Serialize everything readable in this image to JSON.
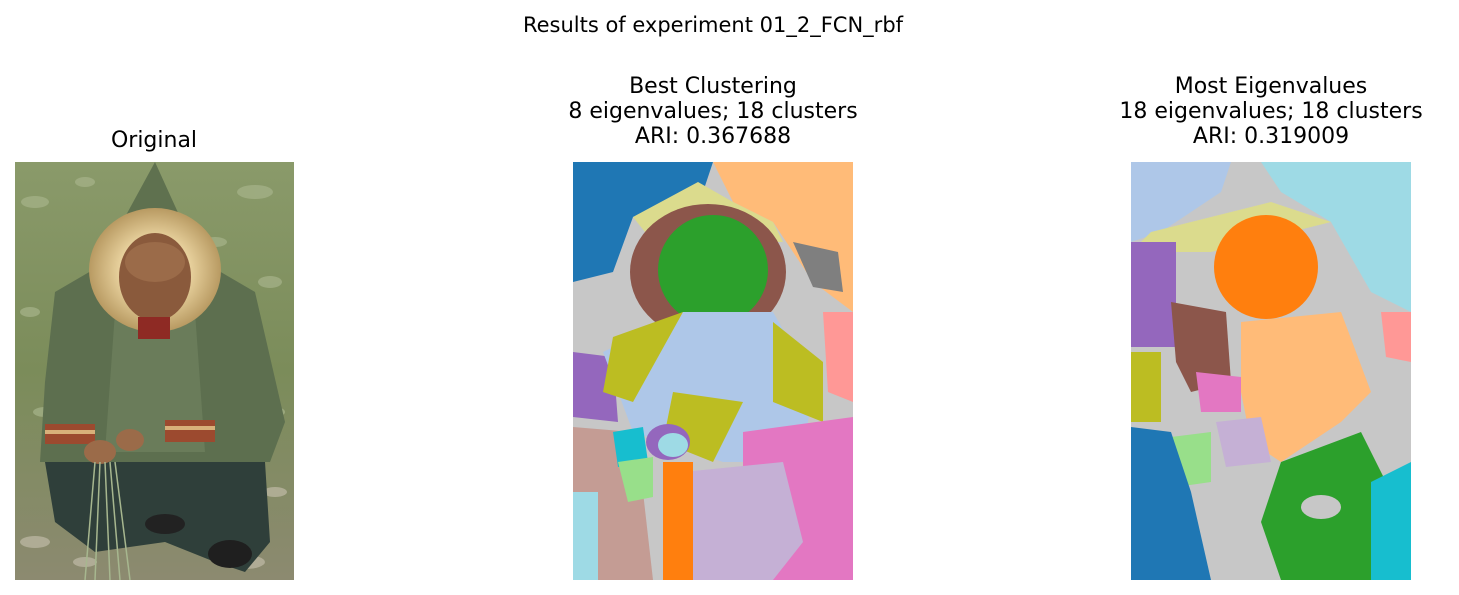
{
  "figure": {
    "suptitle": "Results of experiment 01_2_FCN_rbf"
  },
  "panels": [
    {
      "id": "original",
      "title_lines": [
        "Original"
      ],
      "image": "photo of a man in a green hooded parka with fur trim crouching on grass"
    },
    {
      "id": "best-clustering",
      "title_lines": [
        "Best Clustering",
        "8 eigenvalues; 18 clusters",
        "ARI: 0.367688"
      ]
    },
    {
      "id": "most-eigenvalues",
      "title_lines": [
        "Most Eigenvalues",
        "18 eigenvalues; 18 clusters",
        "ARI: 0.319009"
      ]
    }
  ],
  "colors": {
    "tab_blue": "#1f77b4",
    "tab_lightblue": "#aec7e8",
    "tab_orange": "#ff7f0e",
    "tab_lightorange": "#ffbb78",
    "tab_green": "#2ca02c",
    "tab_lightgreen": "#98df8a",
    "tab_pink": "#ff9896",
    "tab_purple": "#9467bd",
    "tab_lavender": "#c5b0d5",
    "tab_brown": "#8c564b",
    "tab_rosybrown": "#c49c94",
    "tab_magenta": "#e377c2",
    "tab_gray": "#7f7f7f",
    "tab_lightgray": "#c7c7c7",
    "tab_olive": "#bcbd22",
    "tab_khaki": "#dbdb8d",
    "tab_cyan": "#17becf",
    "tab_lightcyan": "#9edae5"
  }
}
